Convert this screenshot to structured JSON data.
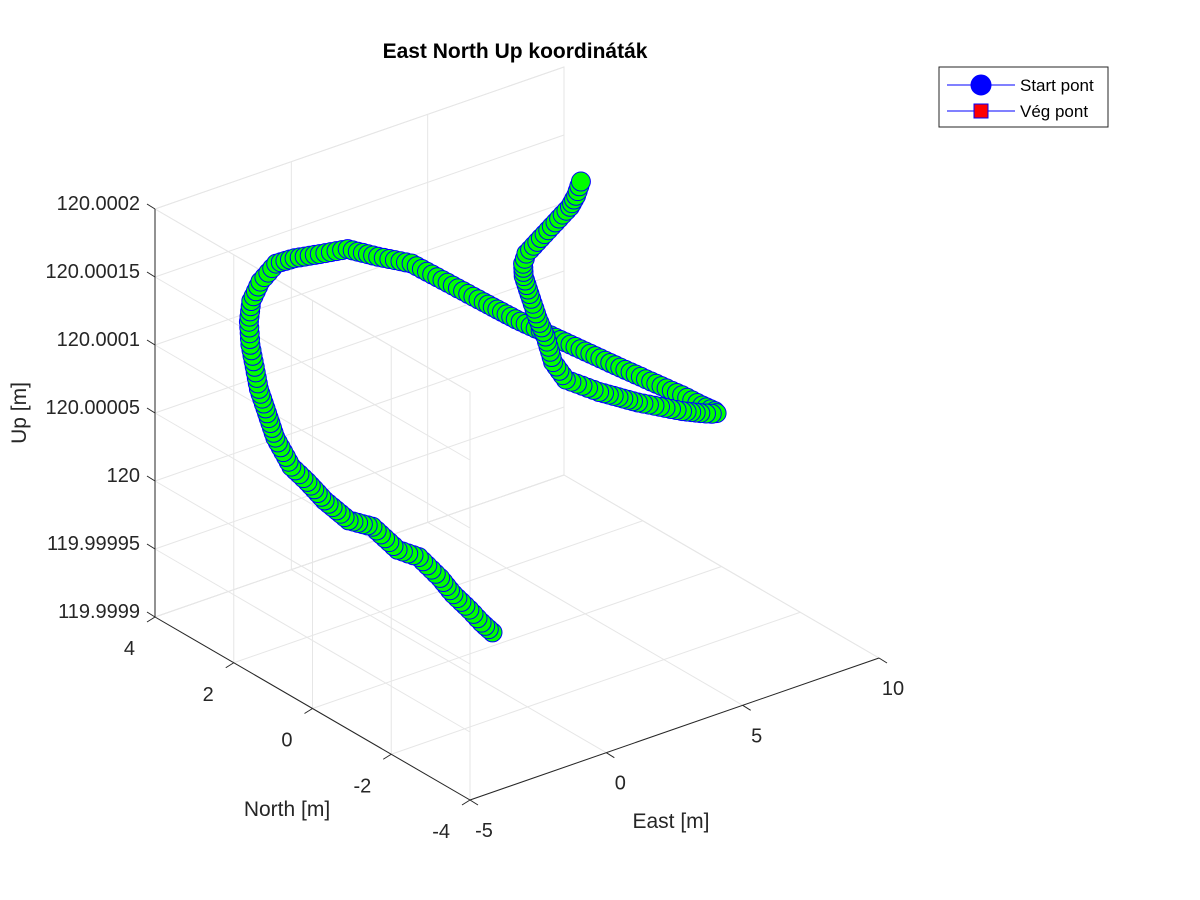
{
  "chart_data": {
    "type": "scatter",
    "title": "East North Up koordináták",
    "xlabel": "East [m]",
    "ylabel": "North [m]",
    "zlabel": "Up [m]",
    "xlim": [
      -5,
      10
    ],
    "ylim": [
      -4,
      4
    ],
    "zlim": [
      119.9999,
      120.0002
    ],
    "xticks": [
      "-5",
      "0",
      "5",
      "10"
    ],
    "yticks": [
      "-4",
      "-2",
      "0",
      "2",
      "4"
    ],
    "zticks": [
      "119.9999",
      "119.99995",
      "120",
      "120.00005",
      "120.0001",
      "120.00015",
      "120.0002"
    ],
    "grid": true,
    "marker_face": "#00ff00",
    "marker_edge": "#0000ff",
    "legend": {
      "placement": "top-right outside",
      "entries": [
        {
          "label": "Start pont",
          "marker": "circle",
          "color": "#0000ff"
        },
        {
          "label": "Vég pont",
          "marker": "square",
          "color": "#ff0000"
        }
      ]
    },
    "series": [
      {
        "points": [
          [
            1.6,
            0.0,
            119.99991
          ],
          [
            1.2,
            0.0,
            119.99992
          ],
          [
            0.9,
            0.1,
            119.99993
          ],
          [
            0.6,
            0.3,
            119.99994
          ],
          [
            0.4,
            0.5,
            119.99995
          ],
          [
            0.2,
            0.9,
            119.99996
          ],
          [
            0.0,
            1.3,
            119.99996
          ],
          [
            -0.2,
            1.8,
            119.99997
          ],
          [
            -0.5,
            2.2,
            119.99997
          ],
          [
            -0.8,
            2.6,
            119.99998
          ],
          [
            -1.0,
            2.9,
            119.99999
          ],
          [
            -1.3,
            3.1,
            120.0
          ],
          [
            -1.6,
            3.3,
            120.00002
          ],
          [
            -1.9,
            3.3,
            120.00004
          ],
          [
            -2.2,
            3.3,
            120.00006
          ],
          [
            -2.5,
            3.2,
            120.00008
          ],
          [
            -2.8,
            3.1,
            120.0001
          ],
          [
            -3.0,
            3.0,
            120.00012
          ],
          [
            -3.2,
            2.8,
            120.00014
          ],
          [
            -3.3,
            2.5,
            120.00016
          ],
          [
            -3.3,
            2.1,
            120.00018
          ],
          [
            -3.2,
            1.7,
            120.00019
          ],
          [
            -3.0,
            1.2,
            120.0002
          ],
          [
            -2.7,
            0.7,
            120.00021
          ],
          [
            -2.3,
            0.2,
            120.00021
          ],
          [
            -1.8,
            -0.3,
            120.00021
          ],
          [
            -1.2,
            -0.8,
            120.0002
          ],
          [
            -0.6,
            -1.3,
            120.00019
          ],
          [
            0.0,
            -1.7,
            120.00018
          ],
          [
            0.7,
            -2.1,
            120.00017
          ],
          [
            1.4,
            -2.5,
            120.00016
          ],
          [
            2.1,
            -2.9,
            120.00015
          ],
          [
            2.8,
            -3.2,
            120.00014
          ],
          [
            3.5,
            -3.5,
            120.00013
          ],
          [
            4.1,
            -3.6,
            120.00012
          ],
          [
            4.7,
            -3.5,
            120.00011
          ],
          [
            5.2,
            -3.2,
            120.0001
          ],
          [
            5.6,
            -2.8,
            120.00009
          ],
          [
            5.9,
            -2.3,
            120.00008
          ],
          [
            6.1,
            -1.7,
            120.00007
          ],
          [
            6.3,
            -1.0,
            120.00006
          ],
          [
            6.5,
            -0.3,
            120.00005
          ],
          [
            6.8,
            0.4,
            120.00004
          ],
          [
            7.1,
            1.1,
            120.00003
          ],
          [
            7.5,
            1.8,
            120.00002
          ],
          [
            7.9,
            2.5,
            120.00001
          ],
          [
            8.3,
            3.1,
            120.00001
          ],
          [
            8.6,
            3.5,
            120.00002
          ],
          [
            8.6,
            3.7,
            120.00003
          ],
          [
            8.3,
            3.7,
            120.00005
          ],
          [
            7.8,
            3.5,
            120.00007
          ],
          [
            7.2,
            3.1,
            120.00009
          ],
          [
            6.6,
            2.6,
            120.00011
          ],
          [
            6.0,
            2.0,
            120.00013
          ],
          [
            5.4,
            1.4,
            120.00015
          ],
          [
            4.8,
            0.8,
            120.00017
          ],
          [
            4.2,
            0.2,
            120.00019
          ],
          [
            3.6,
            -0.4,
            120.00021
          ],
          [
            3.0,
            -1.0,
            120.00023
          ],
          [
            2.5,
            -1.5,
            120.00025
          ],
          [
            2.1,
            -1.9,
            120.00027
          ]
        ]
      }
    ]
  }
}
